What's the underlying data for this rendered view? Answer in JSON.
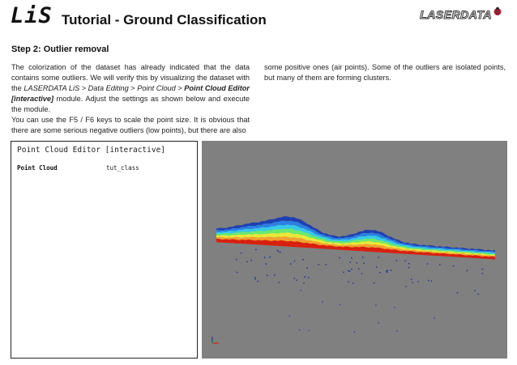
{
  "header": {
    "logo_text": "LiS",
    "title": "Tutorial - Ground Classification",
    "brand": "LASERDATA"
  },
  "section": {
    "heading": "Step 2: Outlier removal"
  },
  "body": {
    "p1_a": "The colorization of the dataset has already indicated that the data contains some outliers. We will verify this by visualizing the dataset with the ",
    "path_app": "LASERDATA LiS",
    "sep": " > ",
    "path_editing": "Data Editing",
    "path_cloud": "Point Cloud",
    "path_module": "Point Cloud Editor [interactive]",
    "p1_b": " module. Adjust the settings as shown below and execute the module.",
    "p2": "You can use the F5 / F6 keys to scale the point size. It is obvious that there are some serious negative outliers (low points), but there are also",
    "p3": "some positive ones (air points). Some of the outliers are isolated points, but many of them are forming clusters."
  },
  "settings_panel": {
    "title": "Point Cloud Editor [interactive]",
    "field_label": "Point Cloud",
    "field_value": "tut_class"
  },
  "viewer": {
    "background": "#808080",
    "palette": [
      "#1f3fb0",
      "#2e7fe0",
      "#38c8e8",
      "#6ae870",
      "#e8e83a",
      "#f0a030",
      "#d82010"
    ]
  }
}
